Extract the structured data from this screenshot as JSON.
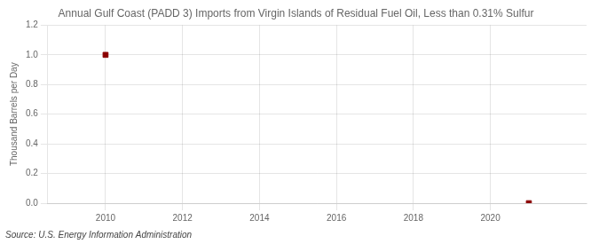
{
  "chart_data": {
    "type": "scatter",
    "title": "Annual Gulf Coast (PADD 3) Imports from Virgin Islands of Residual Fuel Oil, Less than 0.31% Sulfur",
    "ylabel": "Thousand Barrels per Day",
    "annotations": [
      "Source: U.S. Energy Information Administration"
    ],
    "x": [
      2010,
      2021
    ],
    "values": [
      1.0,
      0.0
    ],
    "color": "#8B0000",
    "marker": "square",
    "xlim": [
      2008.5,
      2022.5
    ],
    "xticks": [
      2010,
      2012,
      2014,
      2016,
      2018,
      2020
    ],
    "ylim": [
      0.0,
      1.2
    ],
    "yticks": [
      {
        "value": 0.0,
        "label": "0.0"
      },
      0.2,
      0.4,
      0.6,
      0.8,
      {
        "value": 1.0,
        "label": "1.0"
      },
      1.2
    ],
    "grid": true
  }
}
